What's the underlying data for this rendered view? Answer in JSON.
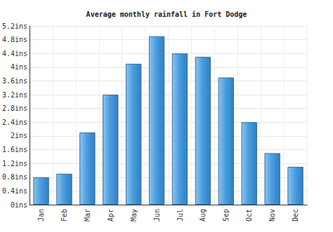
{
  "chart_data": {
    "type": "bar",
    "title": "Average monthly rainfall in Fort Dodge",
    "categories": [
      "Jan",
      "Feb",
      "Mar",
      "Apr",
      "May",
      "Jun",
      "Jul",
      "Aug",
      "Sep",
      "Oct",
      "Nov",
      "Dec"
    ],
    "values": [
      0.8,
      0.9,
      2.1,
      3.2,
      4.1,
      4.9,
      4.4,
      4.3,
      3.7,
      2.4,
      1.5,
      1.1
    ],
    "color": "#4a9ee0",
    "ylim": [
      0,
      5.2
    ],
    "yticks": [
      {
        "value": 0,
        "label": "0ins"
      },
      {
        "value": 0.4,
        "label": "0.4ins"
      },
      {
        "value": 0.8,
        "label": "0.8ins"
      },
      {
        "value": 1.2,
        "label": "1.2ins"
      },
      {
        "value": 1.6,
        "label": "1.6ins"
      },
      {
        "value": 2,
        "label": "2ins"
      },
      {
        "value": 2.4,
        "label": "2.4ins"
      },
      {
        "value": 2.8,
        "label": "2.8ins"
      },
      {
        "value": 3.2,
        "label": "3.2ins"
      },
      {
        "value": 3.6,
        "label": "3.6ins"
      },
      {
        "value": 4,
        "label": "4ins"
      },
      {
        "value": 4.4,
        "label": "4.4ins"
      },
      {
        "value": 4.8,
        "label": "4.8ins"
      },
      {
        "value": 5.2,
        "label": "5.2ins"
      }
    ],
    "grid": true
  }
}
